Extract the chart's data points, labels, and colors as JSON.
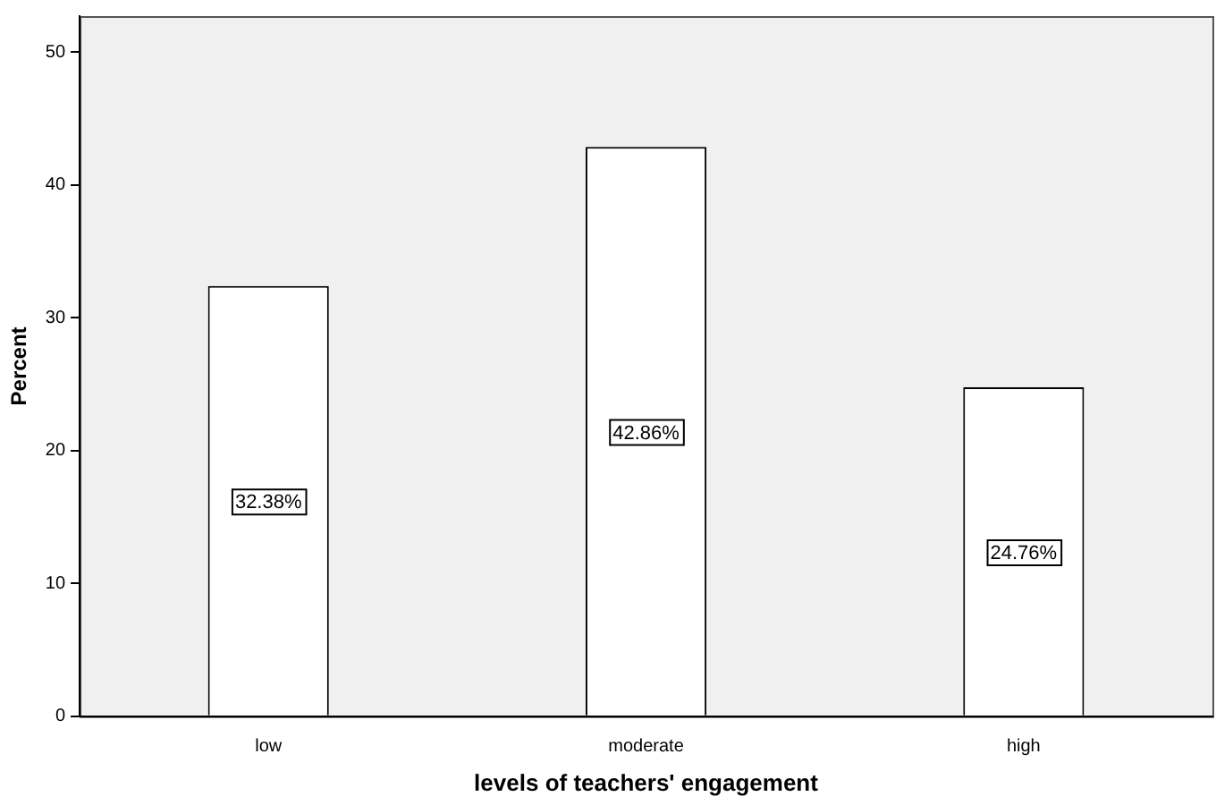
{
  "chart_data": {
    "type": "bar",
    "xlabel": "levels of teachers' engagement",
    "ylabel": "Percent",
    "categories": [
      "low",
      "moderate",
      "high"
    ],
    "values": [
      32.38,
      42.86,
      24.76
    ],
    "value_labels": [
      "32.38%",
      "42.86%",
      "24.76%"
    ],
    "color": "#ffffff",
    "ylim": [
      0,
      52.7
    ],
    "yticks": [
      0,
      10,
      20,
      30,
      40,
      50
    ]
  }
}
